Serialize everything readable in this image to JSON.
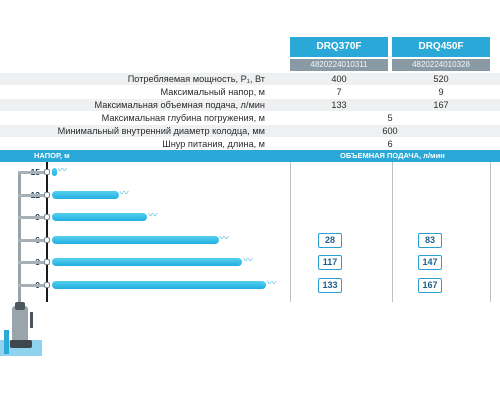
{
  "models": [
    {
      "name": "DRQ370F",
      "code": "4820224010311"
    },
    {
      "name": "DRQ450F",
      "code": "4820224010328"
    }
  ],
  "specs": [
    {
      "label": "Потребляемая мощность, P₁, Вт",
      "values": [
        "400",
        "520"
      ]
    },
    {
      "label": "Максимальный напор, м",
      "values": [
        "7",
        "9"
      ]
    },
    {
      "label": "Максимальная объемная подача, л/мин",
      "values": [
        "133",
        "167"
      ]
    },
    {
      "label": "Максимальная глубина погружения, м",
      "shared": "5"
    },
    {
      "label": "Минимальный внутренний диаметр колодца, мм",
      "shared": "600"
    },
    {
      "label": "Шнур питания, длина, м",
      "shared": "6"
    }
  ],
  "chart": {
    "head_label": "НАПОР, м",
    "flow_label": "ОБЪЕМНАЯ ПОДАЧА, л/мин",
    "levels": [
      {
        "head": "15",
        "flow": [
          "",
          ""
        ],
        "jet": 0.02
      },
      {
        "head": "12",
        "flow": [
          "",
          ""
        ],
        "jet": 0.28
      },
      {
        "head": "9",
        "flow": [
          "",
          ""
        ],
        "jet": 0.4
      },
      {
        "head": "6",
        "flow": [
          "28",
          "83"
        ],
        "jet": 0.7
      },
      {
        "head": "3",
        "flow": [
          "117",
          "147"
        ],
        "jet": 0.8
      },
      {
        "head": "0",
        "flow": [
          "133",
          "167"
        ],
        "jet": 0.9
      }
    ],
    "colors": {
      "accent": "#2aa8d8",
      "jet": "#3bb8e4",
      "badge_border": "#2aa0d4"
    },
    "spray_glyph": "〰"
  }
}
